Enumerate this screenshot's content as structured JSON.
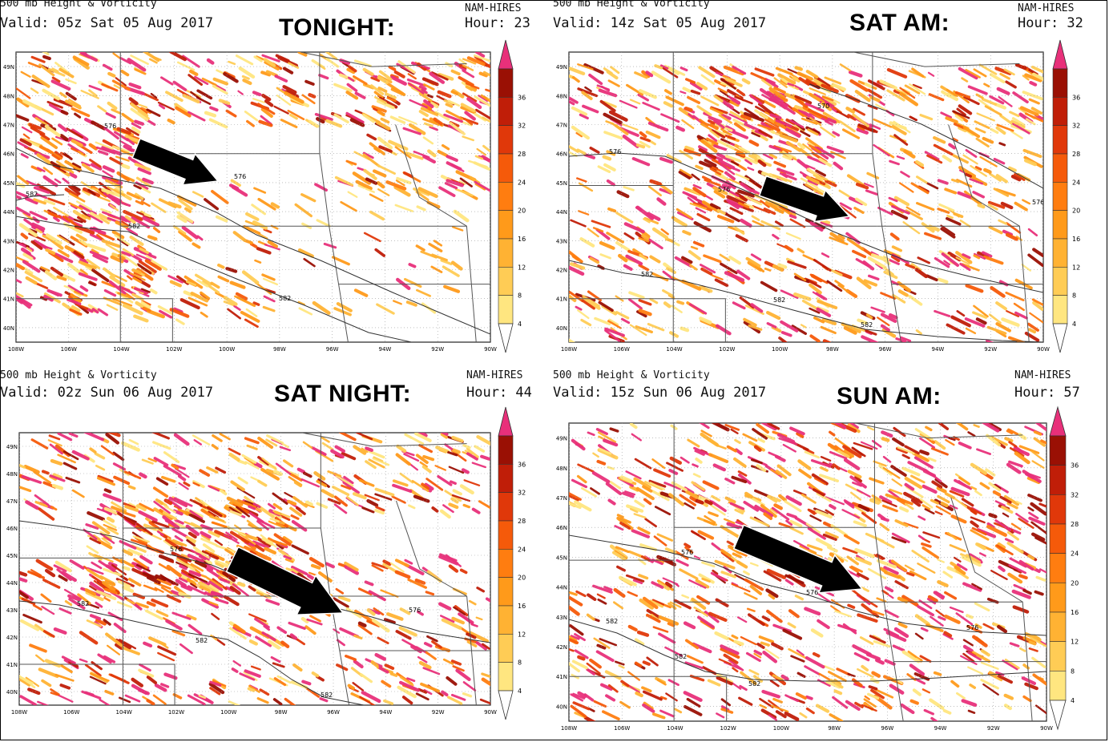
{
  "panels": [
    {
      "id": "p1",
      "product": "500 mb Height & Vorticity",
      "model": "NAM-HIRES",
      "valid": "Valid: 05z Sat 05 Aug 2017",
      "hour": "Hour: 23",
      "label": "TONIGHT:",
      "contours": [
        "576",
        "576",
        "582",
        "582",
        "582",
        "576"
      ]
    },
    {
      "id": "p2",
      "product": "500 mb Height & Vorticity",
      "model": "NAM-HIRES",
      "valid": "Valid: 14z Sat 05 Aug 2017",
      "hour": "Hour: 32",
      "label": "SAT AM:",
      "contours": [
        "570",
        "570",
        "576",
        "576",
        "576",
        "582",
        "582",
        "582"
      ]
    },
    {
      "id": "p3",
      "product": "500 mb Height & Vorticity",
      "model": "NAM-HIRES",
      "valid": "Valid: 02z Sun 06 Aug 2017",
      "hour": "Hour: 44",
      "label": "SAT NIGHT:",
      "contours": [
        "576",
        "576",
        "582",
        "582",
        "582",
        "582"
      ]
    },
    {
      "id": "p4",
      "product": "500 mb Height & Vorticity",
      "model": "NAM-HIRES",
      "valid": "Valid: 15z Sun 06 Aug 2017",
      "hour": "Hour: 57",
      "label": "SUN AM:",
      "contours": [
        "576",
        "576",
        "576",
        "582",
        "582",
        "582"
      ]
    }
  ],
  "axes": {
    "lon_labels": [
      "108W",
      "106W",
      "104W",
      "102W",
      "100W",
      "98W",
      "96W",
      "94W",
      "92W",
      "90W"
    ],
    "lat_labels": [
      "40N",
      "41N",
      "42N",
      "43N",
      "44N",
      "45N",
      "46N",
      "47N",
      "48N",
      "49N"
    ]
  },
  "colorbar": {
    "labels": [
      "4",
      "8",
      "12",
      "16",
      "20",
      "24",
      "28",
      "32",
      "36"
    ],
    "colors": [
      "#ffe680",
      "#ffcc55",
      "#ffb233",
      "#ff9a1a",
      "#ff7d10",
      "#f55a0a",
      "#e0380a",
      "#c01e08",
      "#9a1004",
      "#e8307a"
    ]
  },
  "colors": {
    "border": "#555555",
    "contour": "#333333",
    "grid": "#999999",
    "arrow": "#000000"
  }
}
